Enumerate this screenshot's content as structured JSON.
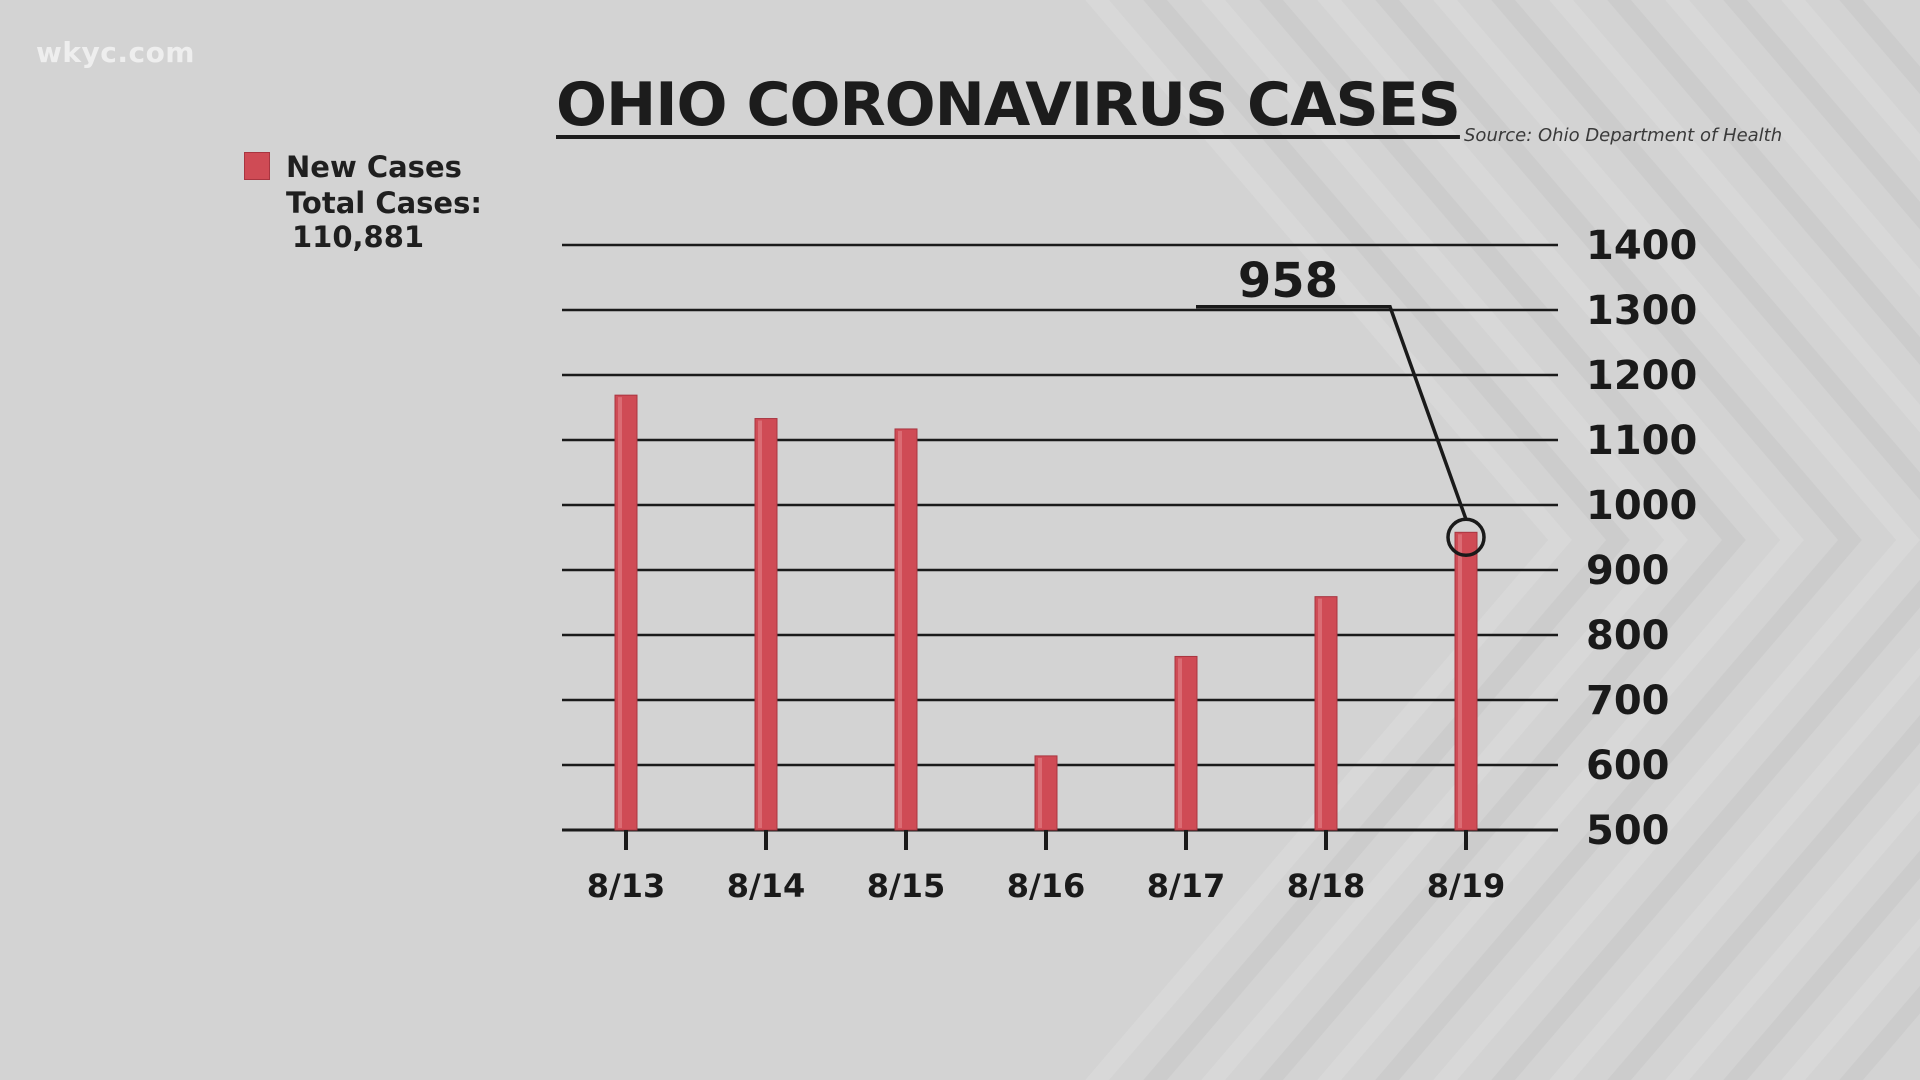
{
  "watermark": "wkyc.com",
  "title": "OHIO CORONAVIRUS CASES",
  "source": "Source: Ohio Department of Health",
  "legend": {
    "label": "New Cases",
    "color": "#cf4b55",
    "total_label": "Total Cases:",
    "total_value": "110,881"
  },
  "callout": {
    "category": "8/19",
    "label": "958"
  },
  "chart_data": {
    "type": "bar",
    "title": "OHIO CORONAVIRUS CASES",
    "xlabel": "",
    "ylabel": "",
    "categories": [
      "8/13",
      "8/14",
      "8/15",
      "8/16",
      "8/17",
      "8/18",
      "8/19"
    ],
    "series": [
      {
        "name": "New Cases",
        "values": [
          1169,
          1133,
          1117,
          614,
          767,
          859,
          958
        ]
      }
    ],
    "ylim": [
      500,
      1400
    ],
    "yticks": [
      500,
      600,
      700,
      800,
      900,
      1000,
      1100,
      1200,
      1300,
      1400
    ],
    "ytick_labels": [
      "500",
      "600",
      "700",
      "800",
      "900",
      "1000",
      "1100",
      "1200",
      "1300",
      "1400"
    ],
    "grid": true,
    "axis_side": "right",
    "legend_position": "top-left"
  }
}
